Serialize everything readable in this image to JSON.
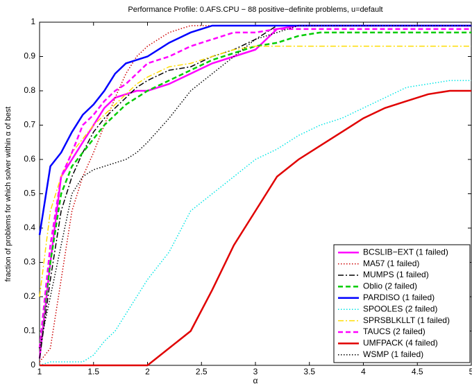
{
  "chart_data": {
    "type": "line",
    "title": "Performance Profile: 0.AFS.CPU − 88 positive−definite problems, u=default",
    "x_label": "α",
    "y_label": "fraction of problems for which solver within α of best",
    "x": [
      1,
      1.1,
      1.2,
      1.3,
      1.4,
      1.5,
      1.6,
      1.7,
      1.8,
      1.9,
      2,
      2.2,
      2.4,
      2.6,
      2.8,
      3,
      3.2,
      3.4,
      3.6,
      3.8,
      4,
      4.2,
      4.4,
      4.6,
      4.8,
      5
    ],
    "xlim": [
      1,
      5
    ],
    "ylim": [
      0,
      1
    ],
    "xticks": [
      1,
      1.5,
      2,
      2.5,
      3,
      3.5,
      4,
      4.5,
      5
    ],
    "yticks": [
      0,
      0.1,
      0.2,
      0.3,
      0.4,
      0.5,
      0.6,
      0.7,
      0.8,
      0.9,
      1
    ],
    "legend": "lower right",
    "series": [
      {
        "name": "BCSLIB−EXT (1 failed)",
        "color": "#ff00ff",
        "linestyle": "solid",
        "values": [
          0.02,
          0.3,
          0.55,
          0.6,
          0.65,
          0.7,
          0.75,
          0.78,
          0.79,
          0.8,
          0.8,
          0.82,
          0.85,
          0.88,
          0.9,
          0.92,
          0.98,
          0.99,
          0.99,
          0.99,
          0.99,
          0.99,
          0.99,
          0.99,
          0.99,
          0.99
        ]
      },
      {
        "name": "MA57 (1 failed)",
        "color": "#cc0000",
        "linestyle": "dotted",
        "values": [
          0.01,
          0.05,
          0.25,
          0.45,
          0.55,
          0.62,
          0.7,
          0.78,
          0.85,
          0.9,
          0.93,
          0.97,
          0.99,
          0.99,
          0.99,
          0.99,
          0.99,
          0.99,
          0.99,
          0.99,
          0.99,
          0.99,
          0.99,
          0.99,
          0.99,
          0.99
        ]
      },
      {
        "name": "MUMPS (1 failed)",
        "color": "#000000",
        "linestyle": "dashdot",
        "values": [
          0.02,
          0.25,
          0.45,
          0.55,
          0.62,
          0.68,
          0.72,
          0.75,
          0.78,
          0.81,
          0.83,
          0.86,
          0.87,
          0.9,
          0.92,
          0.95,
          0.99,
          0.99,
          0.99,
          0.99,
          0.99,
          0.99,
          0.99,
          0.99,
          0.99,
          0.99
        ]
      },
      {
        "name": "Oblio (2 failed)",
        "color": "#00cc00",
        "linestyle": "dashed",
        "values": [
          0.05,
          0.3,
          0.5,
          0.58,
          0.62,
          0.66,
          0.7,
          0.73,
          0.76,
          0.78,
          0.8,
          0.83,
          0.86,
          0.89,
          0.91,
          0.93,
          0.94,
          0.96,
          0.97,
          0.97,
          0.97,
          0.97,
          0.97,
          0.97,
          0.97,
          0.97
        ]
      },
      {
        "name": "PARDISO (1 failed)",
        "color": "#0000ff",
        "linestyle": "solid",
        "values": [
          0.38,
          0.58,
          0.62,
          0.68,
          0.73,
          0.76,
          0.8,
          0.85,
          0.88,
          0.89,
          0.9,
          0.94,
          0.97,
          0.99,
          0.99,
          0.99,
          0.99,
          0.99,
          0.99,
          0.99,
          0.99,
          0.99,
          0.99,
          0.99,
          0.99,
          0.99
        ]
      },
      {
        "name": "SPOOLES (2 failed)",
        "color": "#00e5e5",
        "linestyle": "dotted",
        "values": [
          0,
          0.01,
          0.01,
          0.01,
          0.01,
          0.03,
          0.07,
          0.1,
          0.15,
          0.2,
          0.25,
          0.33,
          0.45,
          0.5,
          0.55,
          0.6,
          0.63,
          0.67,
          0.7,
          0.72,
          0.75,
          0.78,
          0.81,
          0.82,
          0.83,
          0.83
        ]
      },
      {
        "name": "SPRSBLKLLT (1 failed)",
        "color": "#ffdd00",
        "linestyle": "dashdot",
        "values": [
          0.2,
          0.45,
          0.55,
          0.62,
          0.66,
          0.7,
          0.73,
          0.76,
          0.79,
          0.82,
          0.84,
          0.87,
          0.88,
          0.9,
          0.92,
          0.93,
          0.93,
          0.93,
          0.93,
          0.93,
          0.93,
          0.93,
          0.93,
          0.93,
          0.93,
          0.93
        ]
      },
      {
        "name": "TAUCS (2 failed)",
        "color": "#ff00ff",
        "linestyle": "dashed",
        "values": [
          0.05,
          0.35,
          0.55,
          0.62,
          0.7,
          0.73,
          0.77,
          0.8,
          0.82,
          0.85,
          0.88,
          0.9,
          0.93,
          0.95,
          0.97,
          0.97,
          0.98,
          0.98,
          0.98,
          0.98,
          0.98,
          0.98,
          0.98,
          0.98,
          0.98,
          0.98
        ]
      },
      {
        "name": "UMFPACK (4 failed)",
        "color": "#e00000",
        "linestyle": "solid",
        "values": [
          0,
          0,
          0,
          0,
          0,
          0,
          0,
          0,
          0,
          0,
          0,
          0.05,
          0.1,
          0.22,
          0.35,
          0.45,
          0.55,
          0.6,
          0.64,
          0.68,
          0.72,
          0.75,
          0.77,
          0.79,
          0.8,
          0.8
        ]
      },
      {
        "name": "WSMP (1 failed)",
        "color": "#000000",
        "linestyle": "dotted",
        "values": [
          0.05,
          0.2,
          0.35,
          0.5,
          0.55,
          0.57,
          0.58,
          0.59,
          0.6,
          0.62,
          0.65,
          0.72,
          0.8,
          0.85,
          0.9,
          0.95,
          0.97,
          0.99,
          0.99,
          0.99,
          0.99,
          0.99,
          0.99,
          0.99,
          0.99,
          0.99
        ]
      }
    ]
  }
}
